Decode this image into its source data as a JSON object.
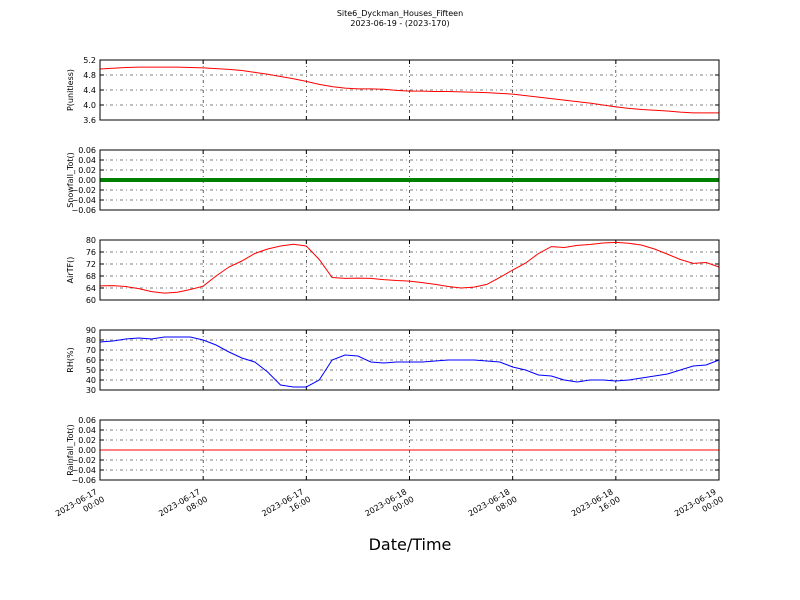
{
  "title": "Site6_Dyckman_Houses_Fifteen",
  "subtitle": "2023-06-19 - (2023-170)",
  "xlabel": "Date/Time",
  "x": [
    "2023-06-17 00:00",
    "2023-06-17 01:00",
    "2023-06-17 02:00",
    "2023-06-17 03:00",
    "2023-06-17 04:00",
    "2023-06-17 05:00",
    "2023-06-17 06:00",
    "2023-06-17 07:00",
    "2023-06-17 08:00",
    "2023-06-17 09:00",
    "2023-06-17 10:00",
    "2023-06-17 11:00",
    "2023-06-17 12:00",
    "2023-06-17 13:00",
    "2023-06-17 14:00",
    "2023-06-17 15:00",
    "2023-06-17 16:00",
    "2023-06-17 17:00",
    "2023-06-17 18:00",
    "2023-06-17 19:00",
    "2023-06-17 20:00",
    "2023-06-17 21:00",
    "2023-06-17 22:00",
    "2023-06-17 23:00",
    "2023-06-18 00:00",
    "2023-06-18 01:00",
    "2023-06-18 02:00",
    "2023-06-18 03:00",
    "2023-06-18 04:00",
    "2023-06-18 05:00",
    "2023-06-18 06:00",
    "2023-06-18 07:00",
    "2023-06-18 08:00",
    "2023-06-18 09:00",
    "2023-06-18 10:00",
    "2023-06-18 11:00",
    "2023-06-18 12:00",
    "2023-06-18 13:00",
    "2023-06-18 14:00",
    "2023-06-18 15:00",
    "2023-06-18 16:00",
    "2023-06-18 17:00",
    "2023-06-18 18:00",
    "2023-06-18 19:00",
    "2023-06-18 20:00",
    "2023-06-18 21:00",
    "2023-06-18 22:00",
    "2023-06-18 23:00",
    "2023-06-19 00:00"
  ],
  "xlim": [
    "2023-06-17 00:00",
    "2023-06-19 00:00"
  ],
  "xticks": [
    "2023-06-17 00:00",
    "2023-06-17 08:00",
    "2023-06-17 16:00",
    "2023-06-18 00:00",
    "2023-06-18 08:00",
    "2023-06-18 16:00",
    "2023-06-19 00:00"
  ],
  "grid": true,
  "chart_data": [
    {
      "type": "line",
      "ylabel": "P(unitless)",
      "ylim": [
        3.6,
        5.2
      ],
      "yticks": [
        3.6,
        {
          "value": 4,
          "label": "4.0"
        },
        4.4,
        4.8,
        5.2
      ],
      "series": [
        {
          "color": "#ff0000",
          "values": [
            4.96,
            4.98,
            5.0,
            5.01,
            5.01,
            5.01,
            5.01,
            5.0,
            4.99,
            4.97,
            4.95,
            4.92,
            4.87,
            4.82,
            4.76,
            4.7,
            4.63,
            4.55,
            4.49,
            4.45,
            4.43,
            4.43,
            4.42,
            4.39,
            4.37,
            4.37,
            4.36,
            4.36,
            4.35,
            4.34,
            4.33,
            4.31,
            4.29,
            4.25,
            4.21,
            4.17,
            4.13,
            4.09,
            4.05,
            4.0,
            3.95,
            3.91,
            3.88,
            3.86,
            3.84,
            3.81,
            3.79,
            3.79,
            3.79
          ]
        }
      ]
    },
    {
      "type": "line",
      "ylabel": "Snowfall_Tot()",
      "ylim": [
        -0.06,
        0.06
      ],
      "yticks": [
        {
          "value": -0.06,
          "label": "−0.06"
        },
        {
          "value": -0.04,
          "label": "−0.04"
        },
        {
          "value": -0.02,
          "label": "−0.02"
        },
        {
          "value": 0,
          "label": "0.00"
        },
        {
          "value": 0.02,
          "label": "0.02"
        },
        {
          "value": 0.04,
          "label": "0.04"
        },
        {
          "value": 0.06,
          "label": "0.06"
        }
      ],
      "series": [
        {
          "color": "#008000",
          "values": [
            0,
            0,
            0,
            0,
            0,
            0,
            0,
            0,
            0,
            0,
            0,
            0,
            0,
            0,
            0,
            0,
            0,
            0,
            0,
            0,
            0,
            0,
            0,
            0,
            0,
            0,
            0,
            0,
            0,
            0,
            0,
            0,
            0,
            0,
            0,
            0,
            0,
            0,
            0,
            0,
            0,
            0,
            0,
            0,
            0,
            0,
            0,
            0,
            0
          ]
        }
      ]
    },
    {
      "type": "line",
      "ylabel": "AirTF()",
      "ylim": [
        60,
        80
      ],
      "yticks": [
        60,
        64,
        68,
        72,
        76,
        80
      ],
      "series": [
        {
          "color": "#ff0000",
          "values": [
            64.7,
            64.8,
            64.5,
            63.8,
            62.8,
            62.3,
            62.6,
            63.5,
            64.6,
            68.0,
            71.0,
            73.0,
            75.5,
            77.0,
            78.0,
            78.6,
            78.0,
            73.5,
            67.5,
            67.2,
            67.3,
            67.2,
            66.8,
            66.5,
            66.3,
            65.8,
            65.2,
            64.5,
            64.0,
            64.3,
            65.2,
            67.5,
            70.0,
            72.3,
            75.5,
            77.8,
            77.5,
            78.2,
            78.5,
            79.0,
            79.2,
            78.9,
            78.3,
            77.0,
            75.3,
            73.5,
            72.2,
            72.5,
            71.0
          ]
        }
      ]
    },
    {
      "type": "line",
      "ylabel": "RH(%)",
      "ylim": [
        30,
        90
      ],
      "yticks": [
        30,
        40,
        50,
        60,
        70,
        80,
        90
      ],
      "series": [
        {
          "color": "#0000ff",
          "values": [
            78,
            79,
            81,
            82,
            81,
            83,
            83,
            83,
            80,
            75,
            68,
            62,
            58,
            48,
            35,
            33,
            33,
            40,
            60,
            65,
            64,
            58,
            57,
            58,
            58,
            58,
            59,
            60,
            60,
            60,
            59,
            58,
            53,
            50,
            45,
            44,
            40,
            38,
            40,
            40,
            39,
            40,
            42,
            44,
            46,
            50,
            54,
            55,
            60
          ]
        }
      ]
    },
    {
      "type": "line",
      "ylabel": "Rainfall_Tot()",
      "ylim": [
        -0.06,
        0.06
      ],
      "yticks": [
        {
          "value": -0.06,
          "label": "−0.06"
        },
        {
          "value": -0.04,
          "label": "−0.04"
        },
        {
          "value": -0.02,
          "label": "−0.02"
        },
        {
          "value": 0,
          "label": "0.00"
        },
        {
          "value": 0.02,
          "label": "0.02"
        },
        {
          "value": 0.04,
          "label": "0.04"
        },
        {
          "value": 0.06,
          "label": "0.06"
        }
      ],
      "series": [
        {
          "color": "#ff0000",
          "values": [
            0,
            0,
            0,
            0,
            0,
            0,
            0,
            0,
            0,
            0,
            0,
            0,
            0,
            0,
            0,
            0,
            0,
            0,
            0,
            0,
            0,
            0,
            0,
            0,
            0,
            0,
            0,
            0,
            0,
            0,
            0,
            0,
            0,
            0,
            0,
            0,
            0,
            0,
            0,
            0,
            0,
            0,
            0,
            0,
            0,
            0,
            0,
            0,
            0
          ]
        }
      ]
    }
  ]
}
